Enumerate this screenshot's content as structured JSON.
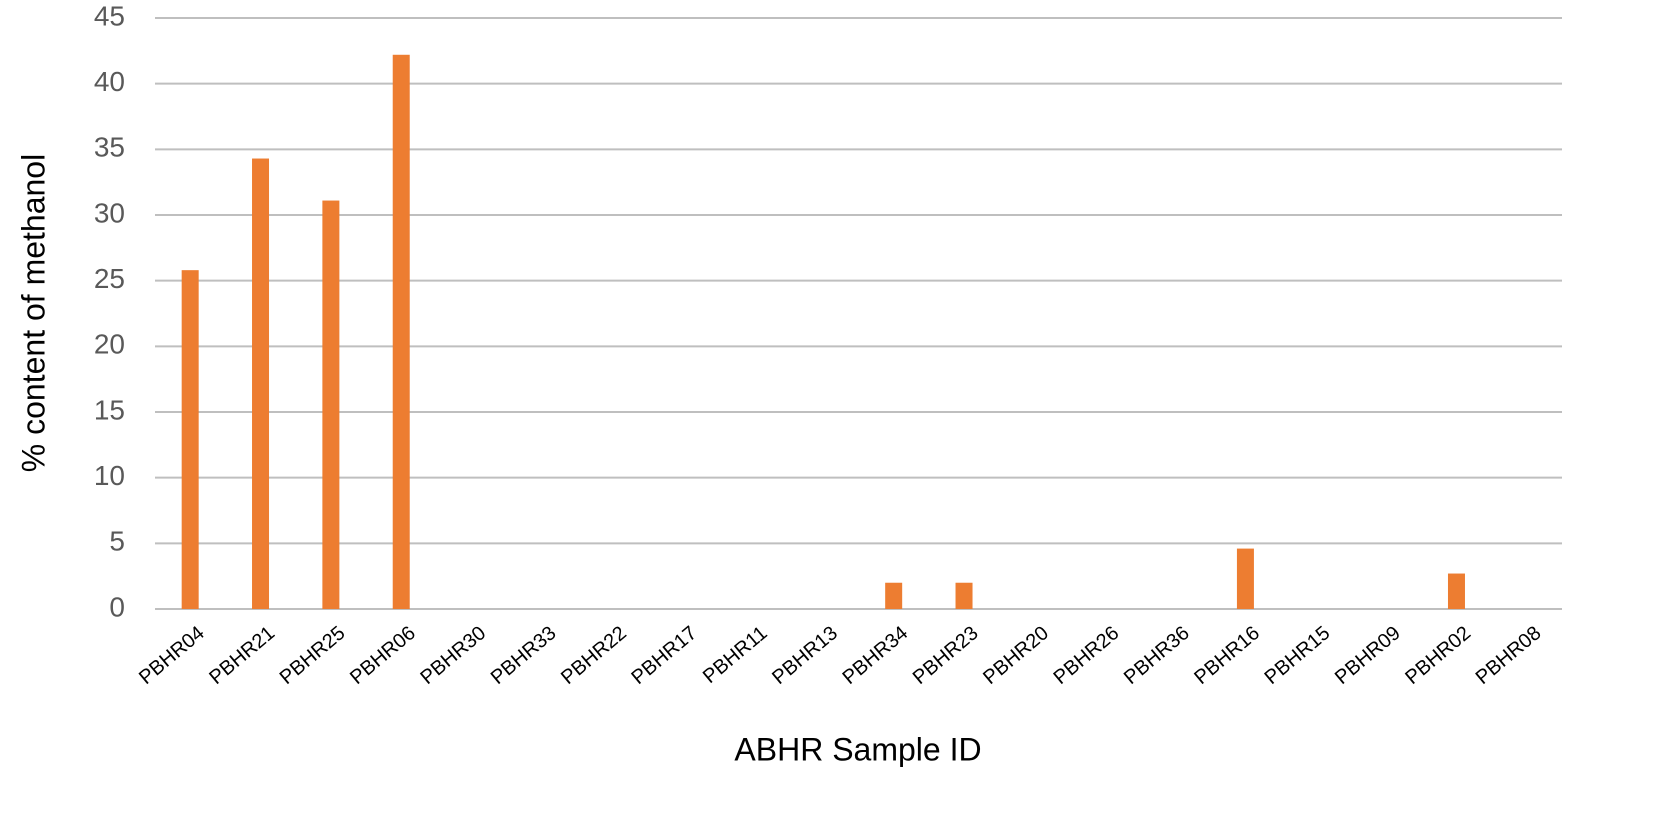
{
  "chart_data": {
    "type": "bar",
    "x_label": "ABHR Sample ID",
    "y_label": "% content of methanol",
    "categories": [
      "PBHR04",
      "PBHR21",
      "PBHR25",
      "PBHR06",
      "PBHR30",
      "PBHR33",
      "PBHR22",
      "PBHR17",
      "PBHR11",
      "PBHR13",
      "PBHR34",
      "PBHR23",
      "PBHR20",
      "PBHR26",
      "PBHR36",
      "PBHR16",
      "PBHR15",
      "PBHR09",
      "PBHR02",
      "PBHR08"
    ],
    "values": [
      25.8,
      34.3,
      31.1,
      42.2,
      0,
      0,
      0,
      0,
      0,
      0,
      2.0,
      2.0,
      0,
      0,
      0,
      4.6,
      0,
      0,
      2.7,
      0
    ],
    "color": "#ed7d31",
    "ylim": [
      0,
      45
    ],
    "yticks": [
      0,
      5,
      10,
      15,
      20,
      25,
      30,
      35,
      40,
      45
    ],
    "grid": true
  }
}
